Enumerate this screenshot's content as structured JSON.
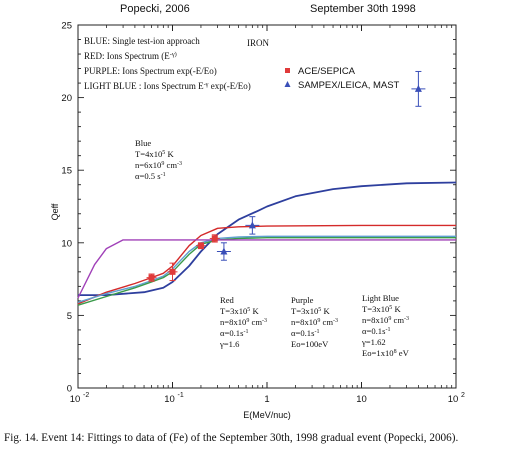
{
  "header": {
    "left": "Popecki, 2006",
    "right": "September 30th 1998"
  },
  "chart_data": {
    "type": "line",
    "xscale": "log",
    "xlim": [
      0.01,
      100
    ],
    "ylim": [
      0,
      25
    ],
    "xlabel": "E(MeV/nuc)",
    "ylabel": "Qeff",
    "x_ticks": [
      "10",
      "10",
      "10",
      "1",
      "10",
      "10"
    ],
    "x_tick_exps": [
      "-2",
      "-1",
      "",
      "",
      "",
      "2"
    ],
    "y_ticks": [
      "0",
      "5",
      "10",
      "15",
      "20",
      "25"
    ],
    "element_label": "IRON",
    "key_lines": [
      "BLUE: Single test-ion approach",
      "RED: Ions Spectrum (E^-γ)",
      "PURPLE: Ions Spectrum   exp(-E/Eo)",
      "LIGHT BLUE : Ions Spectrum E^-γ exp(-E/Eo)"
    ],
    "legend": [
      {
        "name": "ACE/SEPICA",
        "marker": "square",
        "color": "#e03a3a"
      },
      {
        "name": "SAMPEX/LEICA, MAST",
        "marker": "triangle",
        "color": "#3a4fb8"
      }
    ],
    "param_blocks": {
      "blue": [
        "Blue",
        "T=4x10^5 K",
        "n=6x10^9 cm^-3",
        "α=0.5 s^-1"
      ],
      "red": [
        "Red",
        "T=3x10^5 K",
        "n=8x10^9 cm^-3",
        "α=0.1s^-1",
        "γ=1.6"
      ],
      "purple": [
        "Purple",
        "T=3x10^5 K",
        "n=8x10^9 cm^-3",
        "α=0.1s^-1",
        "Eo=100eV"
      ],
      "lightblue": [
        "Light Blue",
        "T=3x10^5 K",
        "n=8x10^9 cm^-3",
        "α=0.1s^-1",
        "γ=1.62",
        "Eo=1x10^8 eV"
      ]
    },
    "series": [
      {
        "key": "blue",
        "color": "#2e3f9e",
        "x": [
          0.01,
          0.02,
          0.05,
          0.08,
          0.1,
          0.15,
          0.2,
          0.3,
          0.5,
          0.8,
          1,
          2,
          5,
          10,
          30,
          100
        ],
        "y": [
          6.4,
          6.4,
          6.6,
          6.9,
          7.3,
          8.4,
          9.4,
          10.6,
          11.6,
          12.2,
          12.5,
          13.2,
          13.7,
          13.9,
          14.1,
          14.15
        ]
      },
      {
        "key": "red",
        "color": "#d42a2a",
        "x": [
          0.01,
          0.02,
          0.04,
          0.06,
          0.08,
          0.1,
          0.15,
          0.2,
          0.3,
          0.5,
          1,
          10,
          100
        ],
        "y": [
          5.8,
          6.6,
          7.2,
          7.6,
          7.9,
          8.4,
          9.8,
          10.5,
          11.0,
          11.1,
          11.15,
          11.2,
          11.2
        ]
      },
      {
        "key": "lightblue",
        "color": "#5f9fd0",
        "x": [
          0.01,
          0.02,
          0.04,
          0.06,
          0.08,
          0.1,
          0.15,
          0.2,
          0.3,
          0.5,
          1,
          10,
          100
        ],
        "y": [
          5.9,
          6.5,
          7.0,
          7.4,
          7.7,
          8.2,
          9.4,
          10.0,
          10.3,
          10.4,
          10.45,
          10.45,
          10.45
        ]
      },
      {
        "key": "green",
        "color": "#3a9a4a",
        "x": [
          0.01,
          0.02,
          0.04,
          0.06,
          0.08,
          0.1,
          0.15,
          0.2,
          0.3,
          0.5,
          1,
          10,
          100
        ],
        "y": [
          5.7,
          6.3,
          6.9,
          7.3,
          7.6,
          8.0,
          9.2,
          9.9,
          10.2,
          10.3,
          10.35,
          10.35,
          10.35
        ]
      },
      {
        "key": "purple",
        "color": "#a040b8",
        "x": [
          0.01,
          0.015,
          0.02,
          0.03,
          0.05,
          0.1,
          1,
          10,
          100
        ],
        "y": [
          6.2,
          8.5,
          9.6,
          10.2,
          10.2,
          10.2,
          10.2,
          10.2,
          10.2
        ]
      }
    ],
    "data_points": [
      {
        "set": "ACE/SEPICA",
        "x": 0.06,
        "y": 7.6,
        "yerr": 0.25
      },
      {
        "set": "ACE/SEPICA",
        "x": 0.1,
        "y": 8.0,
        "yerr": 0.6
      },
      {
        "set": "ACE/SEPICA",
        "x": 0.2,
        "y": 9.8,
        "yerr": 0.2
      },
      {
        "set": "ACE/SEPICA",
        "x": 0.28,
        "y": 10.3,
        "yerr": 0.25
      },
      {
        "set": "SAMPEX/LEICA, MAST",
        "x": 0.35,
        "y": 9.4,
        "yerr": 0.6
      },
      {
        "set": "SAMPEX/LEICA, MAST",
        "x": 0.7,
        "y": 11.2,
        "yerr": 0.6
      },
      {
        "set": "SAMPEX/LEICA, MAST",
        "x": 40,
        "y": 20.6,
        "yerr": 1.2
      }
    ]
  },
  "caption": "Fig. 14. Event 14: Fittings to data of (Fe) of the September 30th,  1998 gradual event (Popecki, 2006)."
}
